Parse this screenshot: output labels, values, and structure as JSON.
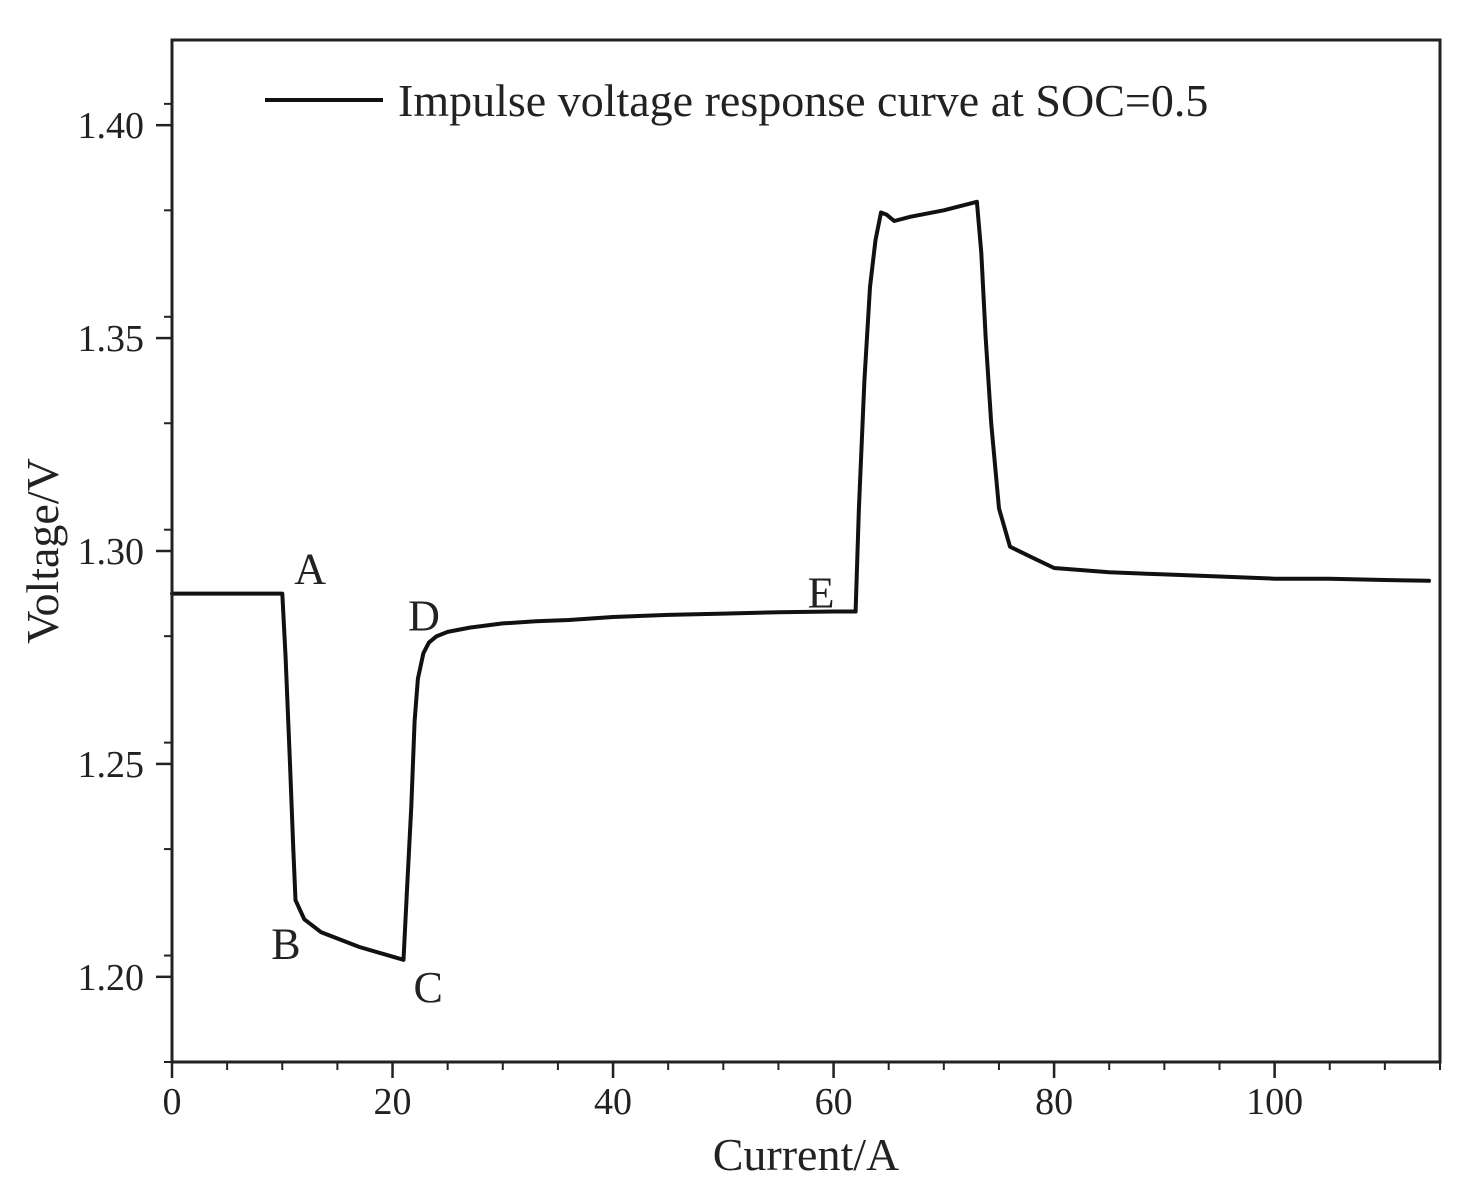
{
  "chart_data": {
    "type": "line",
    "xlabel": "Current/A",
    "ylabel": "Voltage/V",
    "xlim": [
      0,
      115
    ],
    "ylim": [
      1.18,
      1.42
    ],
    "x_ticks": [
      0,
      20,
      40,
      60,
      80,
      100
    ],
    "x_tick_labels": [
      "0",
      "20",
      "40",
      "60",
      "80",
      "100"
    ],
    "x_minor_step": 5,
    "y_ticks": [
      1.2,
      1.25,
      1.3,
      1.35,
      1.4
    ],
    "y_tick_labels": [
      "1.20",
      "1.25",
      "1.30",
      "1.35",
      "1.40"
    ],
    "y_minor_step": 0.025,
    "grid": false,
    "legend_position": "top",
    "series": [
      {
        "name": "Impulse voltage response curve at SOC=0.5",
        "color": "#111111",
        "x": [
          0,
          10,
          10.3,
          10.7,
          11.0,
          11.2,
          12.0,
          13.5,
          15.0,
          17.0,
          19.0,
          21.0,
          21.3,
          21.7,
          22.0,
          22.3,
          22.8,
          23.3,
          24.0,
          25.0,
          27.0,
          30.0,
          33.0,
          36.0,
          40.0,
          45.0,
          50.0,
          55.0,
          60.0,
          62.0,
          62.3,
          62.8,
          63.3,
          63.8,
          64.3,
          64.8,
          65.5,
          67.0,
          70.0,
          73.0,
          73.4,
          73.8,
          74.3,
          75.0,
          76.0,
          78.0,
          80.0,
          85.0,
          90.0,
          95.0,
          100.0,
          105.0,
          110.0,
          114.0
        ],
        "y": [
          1.29,
          1.29,
          1.275,
          1.25,
          1.23,
          1.218,
          1.2135,
          1.2105,
          1.209,
          1.207,
          1.2055,
          1.204,
          1.22,
          1.24,
          1.26,
          1.27,
          1.276,
          1.2785,
          1.28,
          1.281,
          1.282,
          1.283,
          1.2835,
          1.2838,
          1.2845,
          1.285,
          1.2853,
          1.2856,
          1.2858,
          1.2858,
          1.31,
          1.34,
          1.362,
          1.373,
          1.3795,
          1.379,
          1.3775,
          1.3785,
          1.38,
          1.382,
          1.37,
          1.35,
          1.33,
          1.31,
          1.301,
          1.2985,
          1.296,
          1.295,
          1.2945,
          1.294,
          1.2935,
          1.2935,
          1.2932,
          1.293
        ]
      }
    ],
    "annotations": [
      {
        "text": "A",
        "x": 10,
        "y": 1.29,
        "anchor": "above-right"
      },
      {
        "text": "B",
        "x": 11,
        "y": 1.216,
        "anchor": "below-left"
      },
      {
        "text": "C",
        "x": 21,
        "y": 1.204,
        "anchor": "below-right"
      },
      {
        "text": "D",
        "x": 22.5,
        "y": 1.278,
        "anchor": "above"
      },
      {
        "text": "E",
        "x": 62,
        "y": 1.2858,
        "anchor": "above-left"
      }
    ]
  }
}
